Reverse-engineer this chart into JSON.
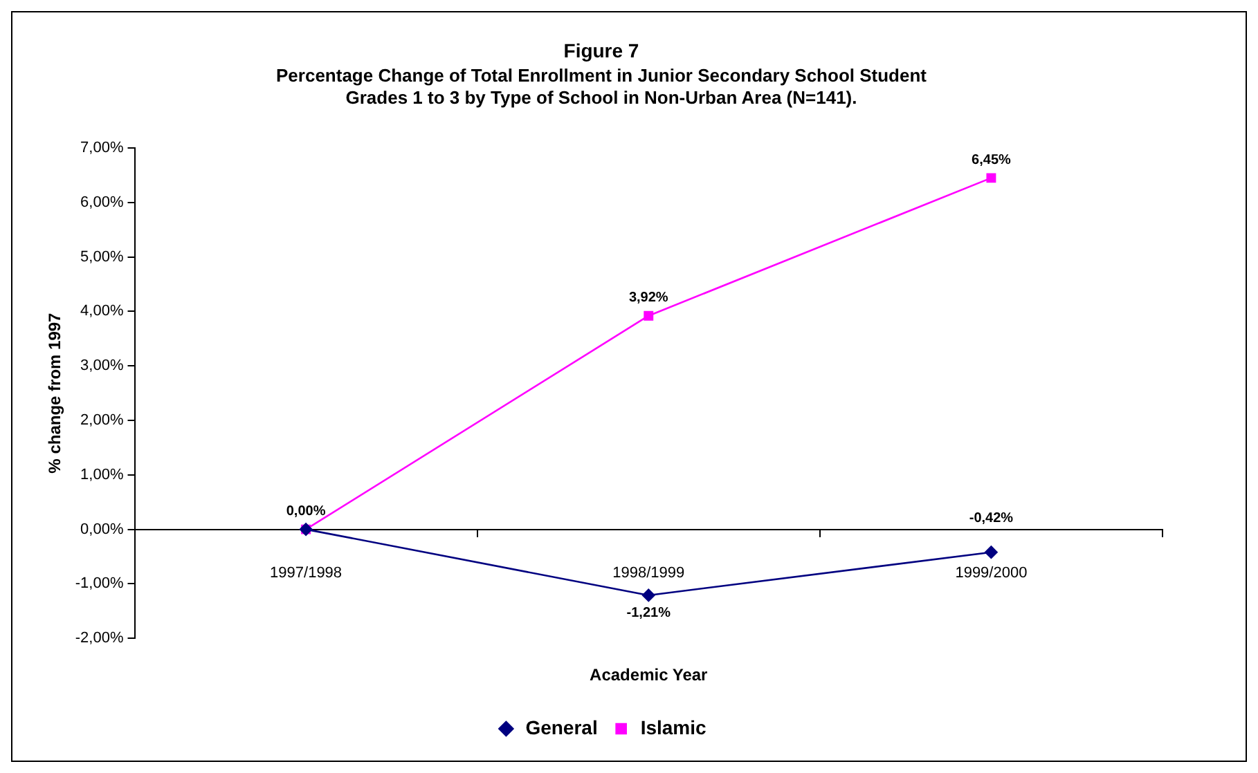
{
  "chart_data": {
    "type": "line",
    "title": "Figure 7",
    "subtitle": "Percentage Change of Total Enrollment in Junior Secondary School Student\nGrades 1 to 3 by Type of School in Non-Urban Area (N=141).",
    "xlabel": "Academic Year",
    "ylabel": "% change from 1997",
    "categories": [
      "1997/1998",
      "1998/1999",
      "1999/2000"
    ],
    "series": [
      {
        "name": "General",
        "color": "#000080",
        "marker": "diamond",
        "values": [
          0,
          -1.21,
          -0.42
        ],
        "value_labels": [
          null,
          "-1,21%",
          "-0,42%"
        ]
      },
      {
        "name": "Islamic",
        "color": "#ff00ff",
        "marker": "square",
        "values": [
          0,
          3.92,
          6.45
        ],
        "value_labels": [
          "0,00%",
          "3,92%",
          "6,45%"
        ]
      }
    ],
    "ylim": [
      -2,
      7
    ],
    "yticks": [
      {
        "value": -2,
        "label": "-2,00%"
      },
      {
        "value": -1,
        "label": "-1,00%"
      },
      {
        "value": 0,
        "label": "0,00%"
      },
      {
        "value": 1,
        "label": "1,00%"
      },
      {
        "value": 2,
        "label": "2,00%"
      },
      {
        "value": 3,
        "label": "3,00%"
      },
      {
        "value": 4,
        "label": "4,00%"
      },
      {
        "value": 5,
        "label": "5,00%"
      },
      {
        "value": 6,
        "label": "6,00%"
      },
      {
        "value": 7,
        "label": "7,00%"
      }
    ],
    "grid": false,
    "legend": "bottom",
    "line_style": "solid"
  }
}
